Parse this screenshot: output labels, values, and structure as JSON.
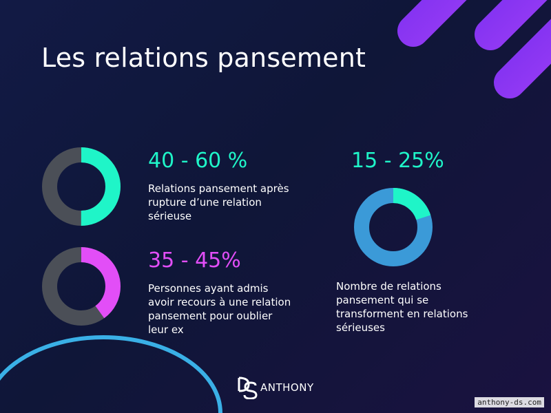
{
  "title": "Les relations pansement",
  "colors": {
    "background": "#121a45",
    "track_gray": "#4b4f57",
    "teal": "#1ff5c8",
    "magenta": "#e24ef7",
    "blue": "#3b9ad8",
    "purple_stripes": "#8a2be2",
    "arc_cyan": "#3ab0e6"
  },
  "stats": [
    {
      "value_text": "40 - 60 %",
      "label": "Relations pansement après rupture d’une relation sérieuse"
    },
    {
      "value_text": "35 - 45%",
      "label": "Personnes ayant admis avoir recours à une relation pansement pour oublier leur ex"
    },
    {
      "value_text": "15 - 25%",
      "label": "Nombre de relations pansement qui se transforment en relations sérieuses"
    }
  ],
  "chart_data": [
    {
      "type": "pie",
      "donut": true,
      "fill_percent": 50,
      "fill_color": "#1ff5c8",
      "track_color": "#4b4f57"
    },
    {
      "type": "pie",
      "donut": true,
      "fill_percent": 40,
      "fill_color": "#e24ef7",
      "track_color": "#4b4f57"
    },
    {
      "type": "pie",
      "donut": true,
      "fill_percent": 20,
      "fill_color": "#1ff5c8",
      "track_color": "#3b9ad8"
    }
  ],
  "logo": {
    "text": "ANTHONY",
    "icon": "ds-monogram-icon"
  },
  "footer": {
    "url": "anthony-ds.com"
  }
}
